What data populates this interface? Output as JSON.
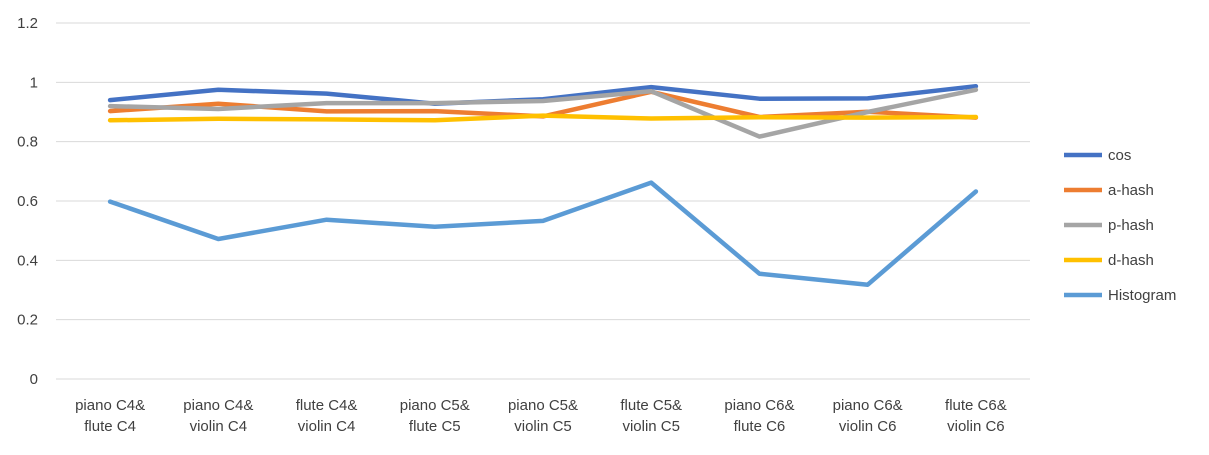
{
  "chart_data": {
    "type": "line",
    "title": "",
    "xlabel": "",
    "ylabel": "",
    "ylim": [
      0,
      1.2
    ],
    "yticks": [
      0,
      0.2,
      0.4,
      0.6,
      0.8,
      1,
      1.2
    ],
    "ytick_labels": [
      "0",
      "0.2",
      "0.4",
      "0.6",
      "0.8",
      "1",
      "1.2"
    ],
    "grid": true,
    "legend_position": "right",
    "categories": [
      [
        "piano C4&",
        "flute C4"
      ],
      [
        "piano C4&",
        "violin C4"
      ],
      [
        "flute C4&",
        "violin C4"
      ],
      [
        "piano C5&",
        "flute C5"
      ],
      [
        "piano C5&",
        "violin C5"
      ],
      [
        "flute C5&",
        "violin C5"
      ],
      [
        "piano C6&",
        "flute C6"
      ],
      [
        "piano C6&",
        "violin C6"
      ],
      [
        "flute C6&",
        "violin C6"
      ]
    ],
    "series": [
      {
        "name": "cos",
        "color": "#4472C4",
        "values": [
          0.94,
          0.975,
          0.962,
          0.928,
          0.943,
          0.984,
          0.945,
          0.946,
          0.987
        ]
      },
      {
        "name": "a-hash",
        "color": "#ED7D31",
        "values": [
          0.903,
          0.928,
          0.902,
          0.903,
          0.885,
          0.968,
          0.883,
          0.901,
          0.881
        ]
      },
      {
        "name": "p-hash",
        "color": "#A5A5A5",
        "values": [
          0.92,
          0.91,
          0.93,
          0.93,
          0.937,
          0.97,
          0.817,
          0.9,
          0.975
        ]
      },
      {
        "name": "d-hash",
        "color": "#FFC000",
        "values": [
          0.872,
          0.877,
          0.875,
          0.872,
          0.888,
          0.878,
          0.882,
          0.881,
          0.883
        ]
      },
      {
        "name": "Histogram",
        "color": "#5B9BD5",
        "values": [
          0.598,
          0.472,
          0.537,
          0.513,
          0.533,
          0.662,
          0.355,
          0.318,
          0.632
        ]
      }
    ]
  }
}
